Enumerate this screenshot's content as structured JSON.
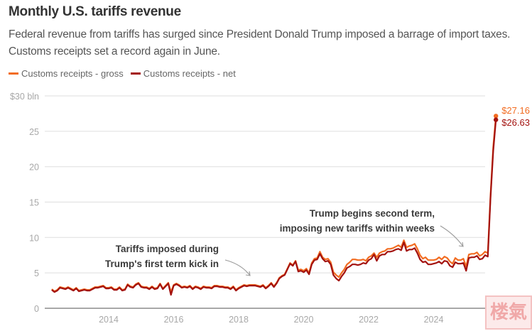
{
  "header": {
    "title": "Monthly U.S. tariffs revenue",
    "subtitle": "Federal revenue from tariffs has surged since President Donald Trump imposed a barrage of import taxes. Customs receipts set a record again in June."
  },
  "watermark": {
    "text": "楼氣"
  },
  "chart_data": {
    "type": "line",
    "title": "Monthly U.S. tariffs revenue",
    "xlabel": "",
    "ylabel": "$ bln",
    "ylim": [
      0,
      30
    ],
    "yticks": [
      0,
      5,
      10,
      15,
      20,
      25,
      30
    ],
    "ytick_labels": [
      "0",
      "5",
      "10",
      "15",
      "20",
      "25",
      "$30 bln"
    ],
    "xticks": [
      2014,
      2016,
      2018,
      2020,
      2022,
      2024
    ],
    "xtick_labels": [
      "2014",
      "2016",
      "2018",
      "2020",
      "2022",
      "2024"
    ],
    "x_start": "2012-04",
    "x_end": "2025-06",
    "grid": true,
    "legend_placement": "top-left",
    "series": [
      {
        "name": "Customs receipts - gross",
        "color": "#f26c21",
        "end_label": "$27.16",
        "values": [
          2.7,
          2.4,
          2.6,
          3.0,
          2.9,
          2.8,
          3.0,
          2.8,
          2.6,
          2.9,
          2.5,
          2.6,
          2.7,
          2.6,
          2.6,
          2.8,
          3.0,
          3.0,
          3.1,
          3.2,
          2.9,
          2.9,
          3.0,
          2.7,
          2.7,
          3.0,
          2.6,
          2.7,
          3.4,
          3.1,
          3.0,
          3.4,
          3.6,
          3.1,
          3.0,
          3.0,
          2.8,
          3.1,
          2.8,
          2.9,
          3.5,
          2.8,
          3.2,
          3.6,
          2.3,
          3.3,
          3.5,
          3.3,
          3.0,
          3.1,
          3.0,
          3.2,
          2.8,
          3.1,
          3.0,
          2.8,
          3.1,
          3.0,
          3.0,
          2.9,
          3.2,
          3.2,
          3.1,
          3.1,
          3.0,
          3.0,
          2.8,
          3.1,
          2.6,
          2.9,
          3.1,
          3.3,
          3.2,
          3.3,
          3.3,
          3.3,
          3.2,
          3.1,
          3.3,
          2.9,
          3.2,
          3.6,
          3.1,
          3.6,
          4.3,
          4.6,
          4.8,
          5.6,
          6.4,
          6.1,
          6.7,
          5.4,
          5.5,
          5.3,
          5.6,
          5.0,
          6.4,
          7.0,
          7.1,
          8.0,
          7.2,
          6.9,
          7.0,
          6.5,
          5.1,
          4.7,
          4.4,
          5.0,
          5.5,
          6.2,
          6.5,
          6.9,
          6.9,
          6.8,
          6.8,
          6.9,
          6.7,
          7.2,
          7.4,
          7.8,
          7.2,
          7.8,
          8.0,
          8.1,
          8.4,
          8.4,
          8.5,
          8.7,
          8.9,
          8.6,
          9.6,
          8.6,
          8.8,
          8.9,
          9.1,
          8.4,
          7.5,
          7.0,
          7.2,
          6.8,
          6.8,
          6.8,
          6.9,
          7.2,
          6.9,
          7.3,
          7.1,
          6.6,
          6.3,
          7.1,
          6.8,
          6.8,
          7.0,
          5.9,
          7.6,
          7.7,
          7.7,
          7.9,
          7.4,
          7.6,
          8.0,
          7.8,
          16.0,
          22.8,
          27.16
        ]
      },
      {
        "name": "Customs receipts - net",
        "color": "#a3120f",
        "end_label": "$26.63",
        "values": [
          2.6,
          2.3,
          2.5,
          2.9,
          2.8,
          2.7,
          2.9,
          2.7,
          2.5,
          2.8,
          2.4,
          2.5,
          2.6,
          2.5,
          2.5,
          2.7,
          2.9,
          2.9,
          3.0,
          3.1,
          2.8,
          2.8,
          2.9,
          2.6,
          2.6,
          2.9,
          2.5,
          2.6,
          3.3,
          3.0,
          2.9,
          3.3,
          3.5,
          3.0,
          2.9,
          2.9,
          2.7,
          3.0,
          2.7,
          2.8,
          3.4,
          2.7,
          3.1,
          3.5,
          1.9,
          3.2,
          3.4,
          3.2,
          2.9,
          3.0,
          2.9,
          3.1,
          2.7,
          3.0,
          2.9,
          2.7,
          3.0,
          2.9,
          2.9,
          2.8,
          3.1,
          3.1,
          3.0,
          3.0,
          2.9,
          2.9,
          2.7,
          3.0,
          2.5,
          2.8,
          3.0,
          3.2,
          3.1,
          3.2,
          3.2,
          3.2,
          3.1,
          3.0,
          3.2,
          2.8,
          3.1,
          3.5,
          3.0,
          3.5,
          4.2,
          4.5,
          4.7,
          5.5,
          6.3,
          6.0,
          6.6,
          5.2,
          5.3,
          5.1,
          5.4,
          4.8,
          6.2,
          6.8,
          6.9,
          7.7,
          7.0,
          6.6,
          6.7,
          6.2,
          4.7,
          4.2,
          3.9,
          4.5,
          5.0,
          5.7,
          5.9,
          6.2,
          6.2,
          6.1,
          6.2,
          6.4,
          6.3,
          6.8,
          7.0,
          7.6,
          6.7,
          7.4,
          7.6,
          7.6,
          8.0,
          8.0,
          8.1,
          8.3,
          8.4,
          8.2,
          9.3,
          8.1,
          8.3,
          8.3,
          8.5,
          7.8,
          6.9,
          6.5,
          6.6,
          6.2,
          6.2,
          6.3,
          6.4,
          6.6,
          6.3,
          6.7,
          6.6,
          6.0,
          5.8,
          6.5,
          6.3,
          6.3,
          6.4,
          5.3,
          7.1,
          7.2,
          7.2,
          7.4,
          6.9,
          7.0,
          7.5,
          7.3,
          15.6,
          22.2,
          26.63
        ]
      }
    ],
    "annotations": [
      {
        "lines": [
          "Tariffs imposed during",
          "Trump's first term kick in"
        ],
        "points_to": "2018-07"
      },
      {
        "lines": [
          "Trump begins second term,",
          "imposing new tariffs within weeks"
        ],
        "points_to": "2025-02"
      }
    ]
  }
}
